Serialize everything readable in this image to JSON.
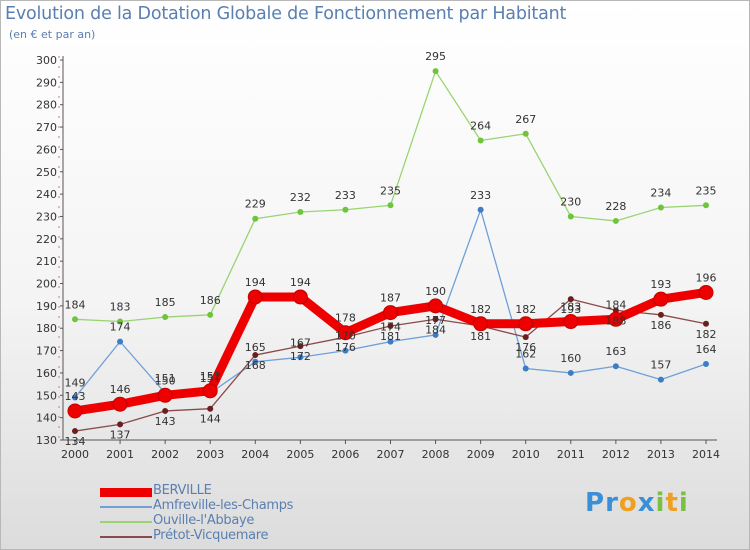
{
  "chart_data": {
    "type": "line",
    "title": "Evolution de la Dotation Globale de Fonctionnement par Habitant",
    "subtitle": "(en € et par an)",
    "xlabel": "",
    "ylabel": "",
    "ylim": [
      130,
      300
    ],
    "yticks": [
      130,
      140,
      150,
      160,
      170,
      180,
      190,
      200,
      210,
      220,
      230,
      240,
      250,
      260,
      270,
      280,
      290,
      300
    ],
    "categories": [
      "2000",
      "2001",
      "2002",
      "2003",
      "2004",
      "2005",
      "2006",
      "2007",
      "2008",
      "2009",
      "2010",
      "2011",
      "2012",
      "2013",
      "2014"
    ],
    "grid": false,
    "legend_position": "bottom-left",
    "series": [
      {
        "name": "BERVILLE",
        "color": "#ee0000",
        "marker": "#ee0000",
        "values": [
          143,
          146,
          150,
          152,
          194,
          194,
          178,
          187,
          190,
          182,
          182,
          183,
          184,
          193,
          196
        ]
      },
      {
        "name": "Amfreville-les-Champs",
        "color": "#6fa0d8",
        "marker": "#3e7cc4",
        "values": [
          149,
          174,
          151,
          151,
          165,
          167,
          170,
          174,
          177,
          233,
          162,
          160,
          163,
          157,
          164
        ]
      },
      {
        "name": "Ouville-l'Abbaye",
        "color": "#9ad472",
        "marker": "#6ec43a",
        "values": [
          184,
          183,
          185,
          186,
          229,
          232,
          233,
          235,
          295,
          264,
          267,
          230,
          228,
          234,
          235
        ]
      },
      {
        "name": "Prétot-Vicquemare",
        "color": "#8b4a4a",
        "marker": "#6a1f1f",
        "values": [
          134,
          137,
          143,
          144,
          168,
          172,
          176,
          181,
          184,
          181,
          176,
          193,
          188,
          186,
          182
        ]
      }
    ]
  },
  "logo": {
    "letters": [
      "P",
      "r",
      "o",
      "x",
      "i",
      "t",
      "i"
    ],
    "colors": [
      "#3a8fd6",
      "#3a8fd6",
      "#f0a020",
      "#3a8fd6",
      "#7ac143",
      "#f0a020",
      "#7ac143"
    ]
  }
}
